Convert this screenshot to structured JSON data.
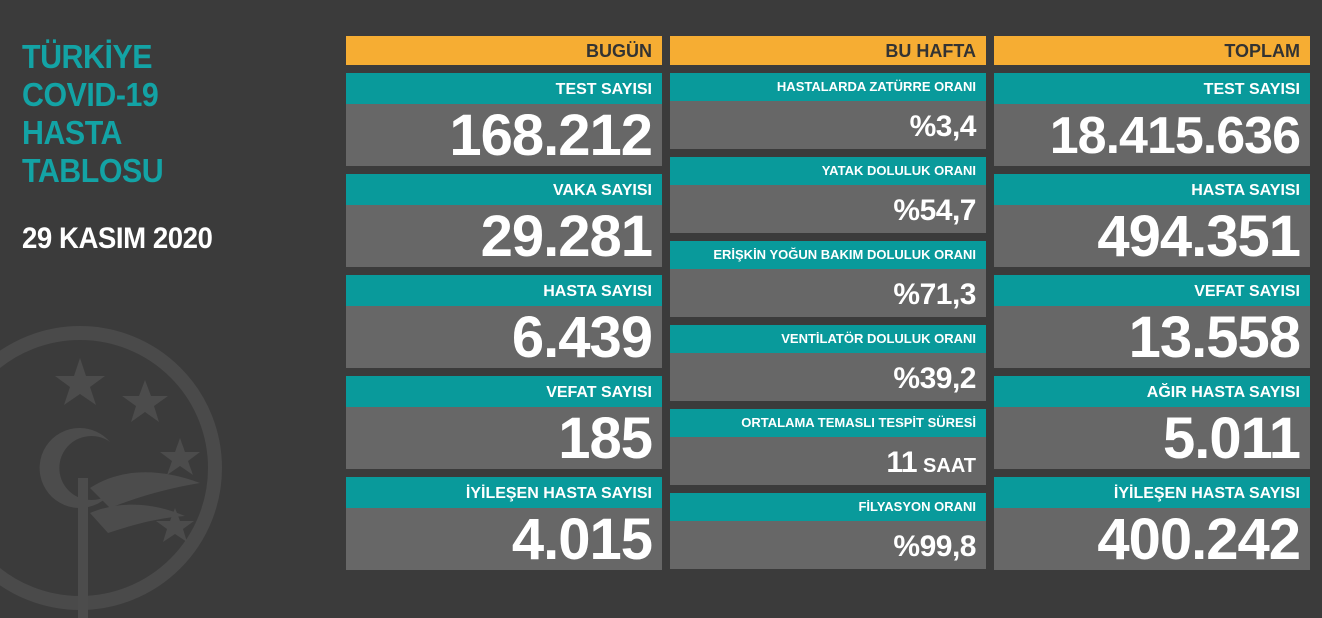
{
  "title_lines": [
    "TÜRKİYE",
    "COVID-19",
    "HASTA",
    "TABLOSU"
  ],
  "date": "29 KASIM 2020",
  "watermark": "anka",
  "colors": {
    "background": "#3b3b3b",
    "accent_title": "#13a3a5",
    "header": "#f6ad33",
    "label_bar": "#099a9b",
    "value_box": "#676767"
  },
  "today": {
    "header": "BUGÜN",
    "stats": [
      {
        "label": "TEST SAYISI",
        "value": "168.212"
      },
      {
        "label": "VAKA SAYISI",
        "value": "29.281"
      },
      {
        "label": "HASTA SAYISI",
        "value": "6.439"
      },
      {
        "label": "VEFAT SAYISI",
        "value": "185"
      },
      {
        "label": "İYİLEŞEN HASTA SAYISI",
        "value": "4.015"
      }
    ]
  },
  "week": {
    "header": "BU HAFTA",
    "stats": [
      {
        "label": "HASTALARDA ZATÜRRE ORANI",
        "value": "%3,4"
      },
      {
        "label": "YATAK DOLULUK ORANI",
        "value": "%54,7"
      },
      {
        "label": "ERİŞKİN YOĞUN BAKIM DOLULUK ORANI",
        "value": "%71,3"
      },
      {
        "label": "VENTİLATÖR DOLULUK ORANI",
        "value": "%39,2"
      },
      {
        "label": "ORTALAMA TEMASLI TESPİT SÜRESİ",
        "value": "11",
        "unit": "SAAT"
      },
      {
        "label": "FİLYASYON ORANI",
        "value": "%99,8"
      }
    ]
  },
  "total": {
    "header": "TOPLAM",
    "stats": [
      {
        "label": "TEST SAYISI",
        "value": "18.415.636"
      },
      {
        "label": "HASTA SAYISI",
        "value": "494.351"
      },
      {
        "label": "VEFAT SAYISI",
        "value": "13.558"
      },
      {
        "label": "AĞIR HASTA SAYISI",
        "value": "5.011"
      },
      {
        "label": "İYİLEŞEN HASTA SAYISI",
        "value": "400.242"
      }
    ]
  }
}
